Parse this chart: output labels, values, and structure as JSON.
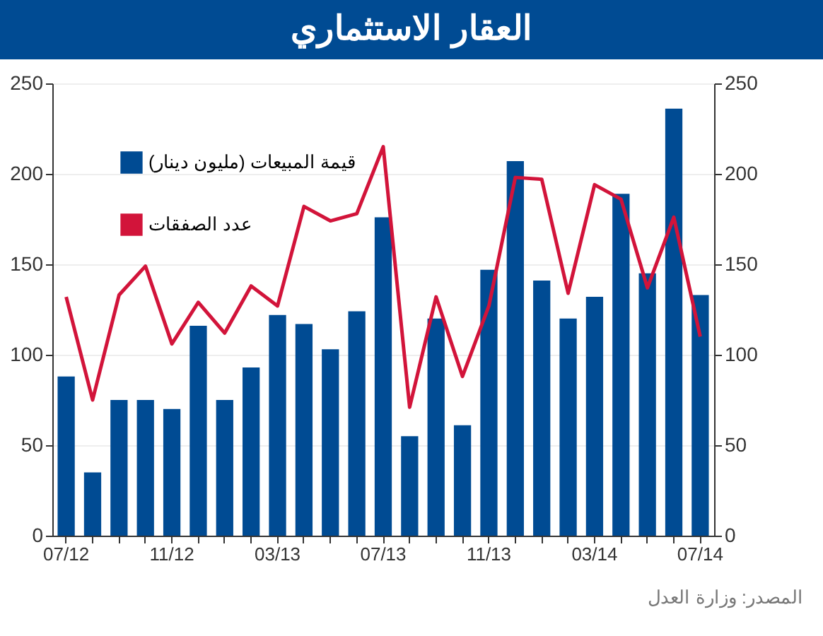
{
  "chart_data": {
    "type": "bar",
    "title": "العقار الاستثماري",
    "categories": [
      "07/12",
      null,
      null,
      null,
      "11/12",
      null,
      null,
      null,
      "03/13",
      null,
      null,
      null,
      "07/13",
      null,
      null,
      null,
      "11/13",
      null,
      null,
      null,
      "03/14",
      null,
      null,
      null,
      "07/14"
    ],
    "series": [
      {
        "name": "قيمة المبيعات (مليون دينار)",
        "color": "#004b93",
        "values": [
          88,
          35,
          75,
          75,
          70,
          116,
          75,
          93,
          122,
          117,
          103,
          124,
          176,
          55,
          120,
          61,
          147,
          207,
          141,
          120,
          132,
          189,
          145,
          236,
          133
        ]
      },
      {
        "name": "عدد الصفقات",
        "type": "line",
        "axis": "y2",
        "color": "#d2143a",
        "values": [
          132,
          75,
          133,
          149,
          106,
          129,
          112,
          138,
          127,
          182,
          174,
          178,
          215,
          71,
          132,
          88,
          127,
          198,
          197,
          134,
          194,
          186,
          137,
          176,
          110
        ]
      }
    ],
    "ylim": [
      0,
      250
    ],
    "yticks": [
      0,
      50,
      100,
      150,
      200,
      250
    ],
    "y2lim": [
      0,
      250
    ],
    "y2ticks": [
      0,
      50,
      100,
      150,
      200,
      250
    ],
    "grid": "y",
    "legend": "top left",
    "marker": "none",
    "line_style": "solid",
    "annotations": [
      "المصدر: وزارة العدل"
    ]
  }
}
